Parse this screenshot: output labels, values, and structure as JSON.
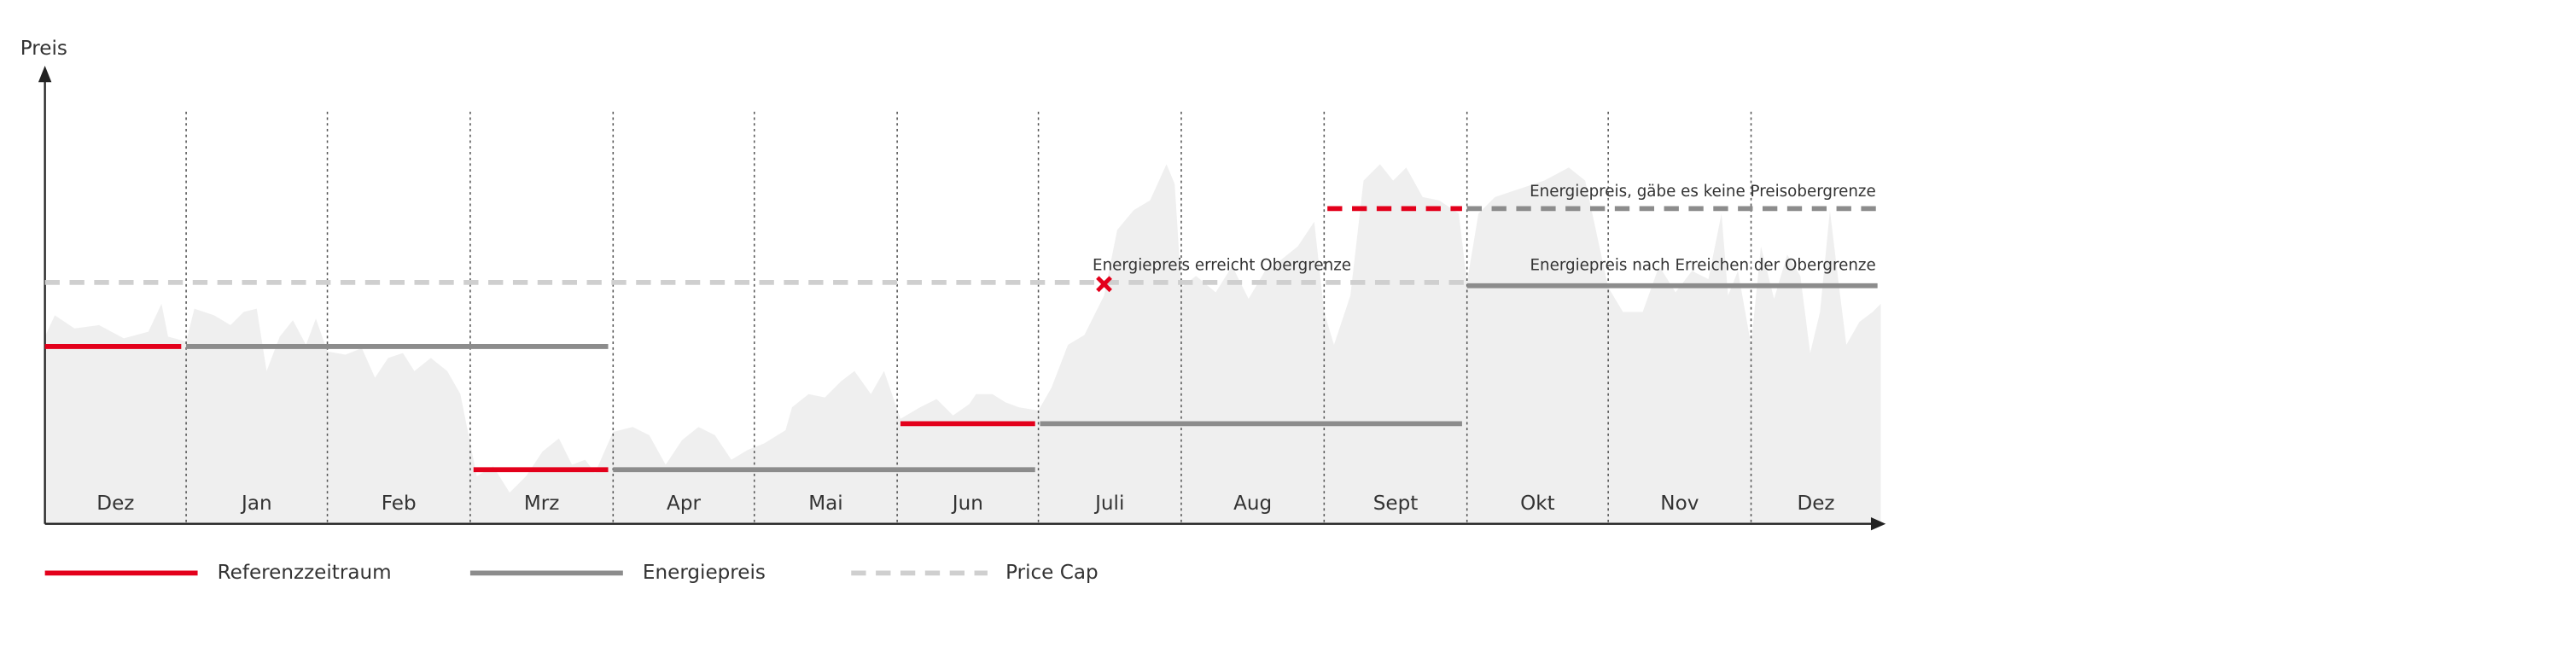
{
  "y_axis_label": "Preis",
  "months": [
    "Dez",
    "Jan",
    "Feb",
    "Mrz",
    "Apr",
    "Mai",
    "Jun",
    "Juli",
    "Aug",
    "Sept",
    "Okt",
    "Nov",
    "Dez"
  ],
  "annotations": {
    "cap_reached": "Energiepreis erreicht Obergrenze",
    "no_cap": "Energiepreis, gäbe es keine Preisobergrenze",
    "after_cap": "Energiepreis nach Erreichen der Obergrenze"
  },
  "legend": [
    "Referenzzeitraum",
    "Energiepreis",
    "Price Cap"
  ]
}
